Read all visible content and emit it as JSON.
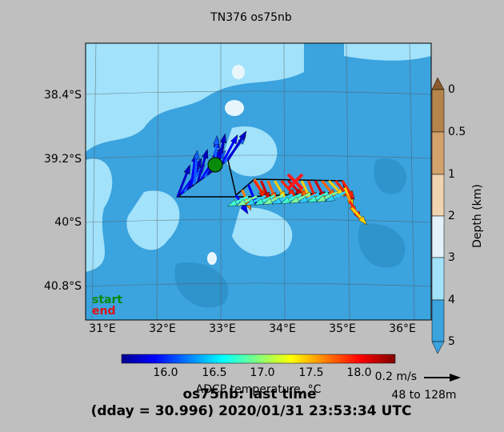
{
  "title": "TN376 os75nb",
  "map": {
    "lat_labels": [
      "38.4°S",
      "39.2°S",
      "40°S",
      "40.8°S"
    ],
    "lon_labels": [
      "31°E",
      "32°E",
      "33°E",
      "34°E",
      "35°E",
      "36°E"
    ],
    "legend": {
      "start": "start",
      "end": "end"
    }
  },
  "depth_colorbar": {
    "label": "Depth (km)",
    "ticks": [
      "0",
      "0.5",
      "1",
      "2",
      "3",
      "4",
      "5"
    ]
  },
  "temperature_colorbar": {
    "label": "ADCP temperature, °C",
    "ticks": [
      "16.0",
      "16.5",
      "17.0",
      "17.5",
      "18.0"
    ]
  },
  "scale": {
    "speed": "0.2 m/s",
    "depth_range": "48 to 128m"
  },
  "footer": {
    "line1": "os75nb: last time",
    "line2": "(dday = 30.996) 2020/01/31 23:53:34 UTC"
  }
}
